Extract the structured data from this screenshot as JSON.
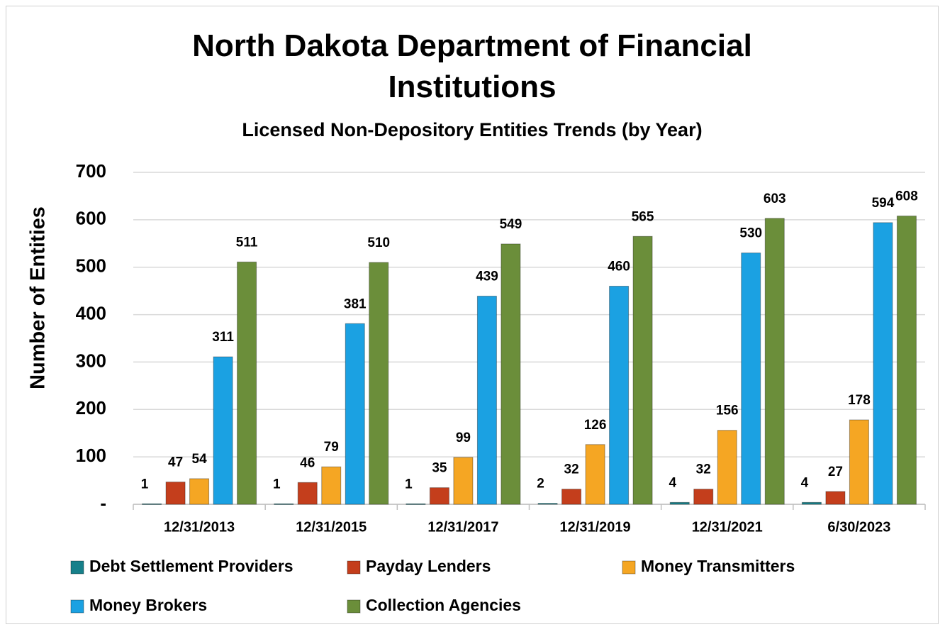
{
  "chart_data": {
    "type": "bar",
    "title": "North Dakota Department of Financial Institutions",
    "subtitle": "Licensed Non-Depository Entities Trends (by Year)",
    "y_label": "Number of Entities",
    "categories": [
      "12/31/2013",
      "12/31/2015",
      "12/31/2017",
      "12/31/2019",
      "12/31/2021",
      "6/30/2023"
    ],
    "series": [
      {
        "name": "Debt Settlement Providers",
        "color": "#17808a",
        "values": [
          1,
          1,
          1,
          2,
          4,
          4
        ]
      },
      {
        "name": "Payday Lenders",
        "color": "#c43e1c",
        "values": [
          47,
          46,
          35,
          32,
          32,
          27
        ]
      },
      {
        "name": "Money Transmitters",
        "color": "#f5a623",
        "values": [
          54,
          79,
          99,
          126,
          156,
          178
        ]
      },
      {
        "name": "Money Brokers",
        "color": "#1ba1e2",
        "values": [
          311,
          381,
          439,
          460,
          530,
          594
        ]
      },
      {
        "name": "Collection Agencies",
        "color": "#6b8e3a",
        "values": [
          511,
          510,
          549,
          565,
          603,
          608
        ]
      }
    ],
    "ylim": [
      0,
      700
    ],
    "yticks": [
      {
        "value": 0,
        "label": "-"
      },
      100,
      200,
      300,
      400,
      500,
      600,
      700
    ],
    "grid": true,
    "legend": "bottom"
  }
}
